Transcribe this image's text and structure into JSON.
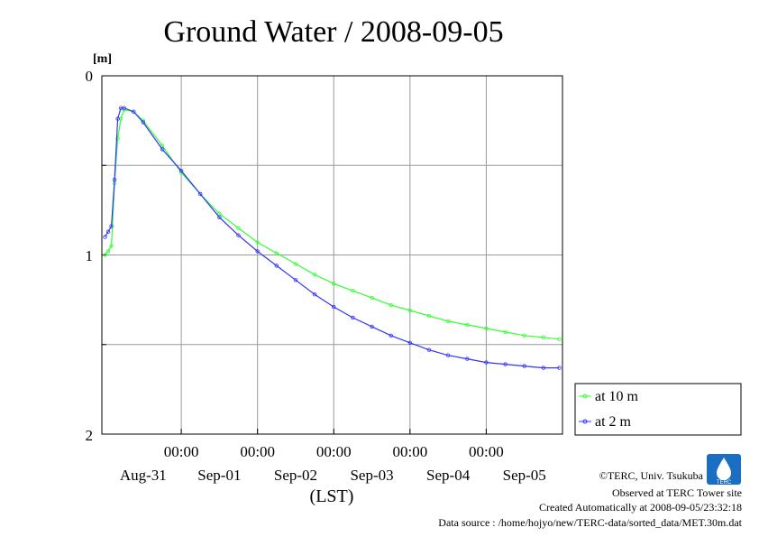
{
  "chart_data": {
    "type": "line",
    "title": "Ground Water / 2008-09-05",
    "ylabel": "[m]",
    "xlabel": "(LST)",
    "y_inverted": true,
    "ylim": [
      2,
      0
    ],
    "yticks": [
      "0",
      "1",
      "2"
    ],
    "xlim_days_note": "Aug-30 ~23:00 to Sep-05 24:00",
    "x_time_labels": [
      "00:00",
      "00:00",
      "00:00",
      "00:00",
      "00:00"
    ],
    "x_date_labels": [
      "Aug-31",
      "Sep-01",
      "Sep-02",
      "Sep-03",
      "Sep-04",
      "Sep-05"
    ],
    "grid": true,
    "legend_position": "right",
    "series": [
      {
        "name": "at 10 m",
        "color": "#33ff33",
        "points": [
          [
            "2008-08-31 00:00",
            1.0
          ],
          [
            "2008-08-31 01:00",
            0.98
          ],
          [
            "2008-08-31 02:00",
            0.95
          ],
          [
            "2008-08-31 03:00",
            0.6
          ],
          [
            "2008-08-31 04:00",
            0.35
          ],
          [
            "2008-08-31 05:00",
            0.24
          ],
          [
            "2008-08-31 06:00",
            0.19
          ],
          [
            "2008-08-31 09:00",
            0.2
          ],
          [
            "2008-08-31 12:00",
            0.25
          ],
          [
            "2008-08-31 18:00",
            0.39
          ],
          [
            "2008-09-01 00:00",
            0.54
          ],
          [
            "2008-09-01 06:00",
            0.66
          ],
          [
            "2008-09-01 12:00",
            0.77
          ],
          [
            "2008-09-01 18:00",
            0.85
          ],
          [
            "2008-09-02 00:00",
            0.93
          ],
          [
            "2008-09-02 06:00",
            0.99
          ],
          [
            "2008-09-02 12:00",
            1.05
          ],
          [
            "2008-09-02 18:00",
            1.11
          ],
          [
            "2008-09-03 00:00",
            1.16
          ],
          [
            "2008-09-03 06:00",
            1.2
          ],
          [
            "2008-09-03 12:00",
            1.24
          ],
          [
            "2008-09-03 18:00",
            1.28
          ],
          [
            "2008-09-04 00:00",
            1.31
          ],
          [
            "2008-09-04 06:00",
            1.34
          ],
          [
            "2008-09-04 12:00",
            1.37
          ],
          [
            "2008-09-04 18:00",
            1.39
          ],
          [
            "2008-09-05 00:00",
            1.41
          ],
          [
            "2008-09-05 06:00",
            1.43
          ],
          [
            "2008-09-05 12:00",
            1.45
          ],
          [
            "2008-09-05 18:00",
            1.46
          ],
          [
            "2008-09-05 23:00",
            1.47
          ]
        ]
      },
      {
        "name": "at 2 m",
        "color": "#3333ff",
        "points": [
          [
            "2008-08-31 00:00",
            0.9
          ],
          [
            "2008-08-31 01:00",
            0.87
          ],
          [
            "2008-08-31 02:00",
            0.84
          ],
          [
            "2008-08-31 03:00",
            0.58
          ],
          [
            "2008-08-31 04:00",
            0.24
          ],
          [
            "2008-08-31 05:00",
            0.18
          ],
          [
            "2008-08-31 06:00",
            0.18
          ],
          [
            "2008-08-31 09:00",
            0.2
          ],
          [
            "2008-08-31 12:00",
            0.26
          ],
          [
            "2008-08-31 18:00",
            0.41
          ],
          [
            "2008-09-01 00:00",
            0.53
          ],
          [
            "2008-09-01 06:00",
            0.66
          ],
          [
            "2008-09-01 12:00",
            0.79
          ],
          [
            "2008-09-01 18:00",
            0.89
          ],
          [
            "2008-09-02 00:00",
            0.98
          ],
          [
            "2008-09-02 06:00",
            1.06
          ],
          [
            "2008-09-02 12:00",
            1.14
          ],
          [
            "2008-09-02 18:00",
            1.22
          ],
          [
            "2008-09-03 00:00",
            1.29
          ],
          [
            "2008-09-03 06:00",
            1.35
          ],
          [
            "2008-09-03 12:00",
            1.4
          ],
          [
            "2008-09-03 18:00",
            1.45
          ],
          [
            "2008-09-04 00:00",
            1.49
          ],
          [
            "2008-09-04 06:00",
            1.53
          ],
          [
            "2008-09-04 12:00",
            1.56
          ],
          [
            "2008-09-04 18:00",
            1.58
          ],
          [
            "2008-09-05 00:00",
            1.6
          ],
          [
            "2008-09-05 06:00",
            1.61
          ],
          [
            "2008-09-05 12:00",
            1.62
          ],
          [
            "2008-09-05 18:00",
            1.63
          ],
          [
            "2008-09-05 23:00",
            1.63
          ]
        ]
      }
    ]
  },
  "footer": {
    "credit": "©TERC, Univ. Tsukuba",
    "observed": "Observed at TERC Tower site",
    "created": "Created Automatically at 2008-09-05/23:32:18",
    "source": "Data source : /home/hojyo/new/TERC-data/sorted_data/MET.30m.dat",
    "logo_text": "TERC"
  }
}
